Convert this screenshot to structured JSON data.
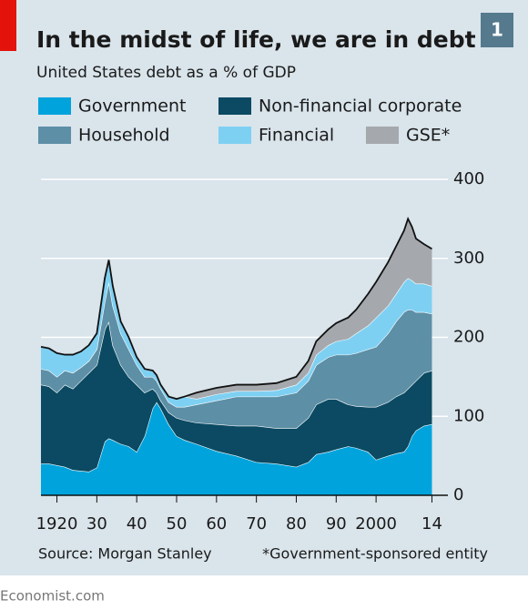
{
  "chart_data": {
    "type": "stacked_area",
    "title": "In the midst of life, we are in debt",
    "subtitle": "United States debt as a % of GDP",
    "badge": "1",
    "source": "Source: Morgan Stanley",
    "note": "*Government-sponsored entity",
    "x": [
      1916,
      1918,
      1920,
      1922,
      1924,
      1926,
      1928,
      1930,
      1932,
      1933,
      1934,
      1936,
      1938,
      1940,
      1942,
      1944,
      1945,
      1946,
      1948,
      1950,
      1952,
      1955,
      1960,
      1965,
      1970,
      1975,
      1980,
      1983,
      1985,
      1988,
      1990,
      1993,
      1995,
      1998,
      2000,
      2003,
      2005,
      2007,
      2008,
      2009,
      2010,
      2012,
      2014
    ],
    "series": [
      {
        "name": "Government",
        "color": "#00a3dc",
        "values": [
          40,
          40,
          38,
          36,
          32,
          31,
          30,
          35,
          68,
          72,
          70,
          65,
          62,
          55,
          75,
          110,
          118,
          110,
          90,
          75,
          70,
          65,
          56,
          50,
          42,
          40,
          36,
          42,
          52,
          55,
          58,
          62,
          60,
          55,
          45,
          50,
          53,
          55,
          62,
          75,
          82,
          88,
          90
        ]
      },
      {
        "name": "Non-financial corporate",
        "color": "#0b4a62",
        "values": [
          100,
          98,
          92,
          104,
          103,
          114,
          125,
          130,
          142,
          148,
          120,
          100,
          88,
          85,
          55,
          25,
          12,
          10,
          15,
          23,
          25,
          27,
          34,
          38,
          46,
          45,
          49,
          56,
          63,
          67,
          64,
          53,
          53,
          57,
          67,
          68,
          72,
          75,
          73,
          65,
          63,
          67,
          68
        ]
      },
      {
        "name": "Household",
        "color": "#5d8fa6",
        "values": [
          20,
          20,
          20,
          18,
          20,
          17,
          15,
          20,
          35,
          50,
          50,
          40,
          35,
          25,
          20,
          15,
          15,
          15,
          13,
          14,
          17,
          23,
          30,
          37,
          37,
          40,
          45,
          47,
          50,
          53,
          56,
          63,
          67,
          73,
          76,
          87,
          95,
          102,
          100,
          95,
          87,
          77,
          72
        ]
      },
      {
        "name": "Financial",
        "color": "#7ed0f2",
        "values": [
          28,
          28,
          30,
          20,
          23,
          20,
          20,
          20,
          30,
          28,
          25,
          15,
          15,
          10,
          10,
          8,
          7,
          5,
          7,
          10,
          13,
          7,
          8,
          7,
          7,
          8,
          10,
          10,
          13,
          15,
          17,
          20,
          25,
          30,
          37,
          35,
          35,
          38,
          40,
          37,
          36,
          36,
          35
        ]
      },
      {
        "name": "GSE*",
        "color": "#a5a9ad",
        "values": [
          0,
          0,
          0,
          0,
          0,
          0,
          0,
          0,
          0,
          0,
          0,
          0,
          0,
          0,
          0,
          0,
          0,
          0,
          0,
          0,
          0,
          8,
          8,
          8,
          8,
          9,
          10,
          15,
          17,
          20,
          23,
          27,
          30,
          40,
          45,
          55,
          60,
          65,
          75,
          68,
          57,
          50,
          47
        ]
      }
    ],
    "xlim": [
      1916,
      2018
    ],
    "xticks": [
      1920,
      {
        "value": 1930,
        "label": "30"
      },
      {
        "value": 1940,
        "label": "40"
      },
      {
        "value": 1950,
        "label": "50"
      },
      {
        "value": 1960,
        "label": "60"
      },
      {
        "value": 1970,
        "label": "70"
      },
      {
        "value": 1980,
        "label": "80"
      },
      {
        "value": 1990,
        "label": "90"
      },
      2000,
      {
        "value": 2014,
        "label": "14"
      }
    ],
    "ylim": [
      0,
      400
    ],
    "yticks": [
      0,
      100,
      200,
      300,
      400
    ],
    "grid": true
  },
  "footer": "Economist.com"
}
